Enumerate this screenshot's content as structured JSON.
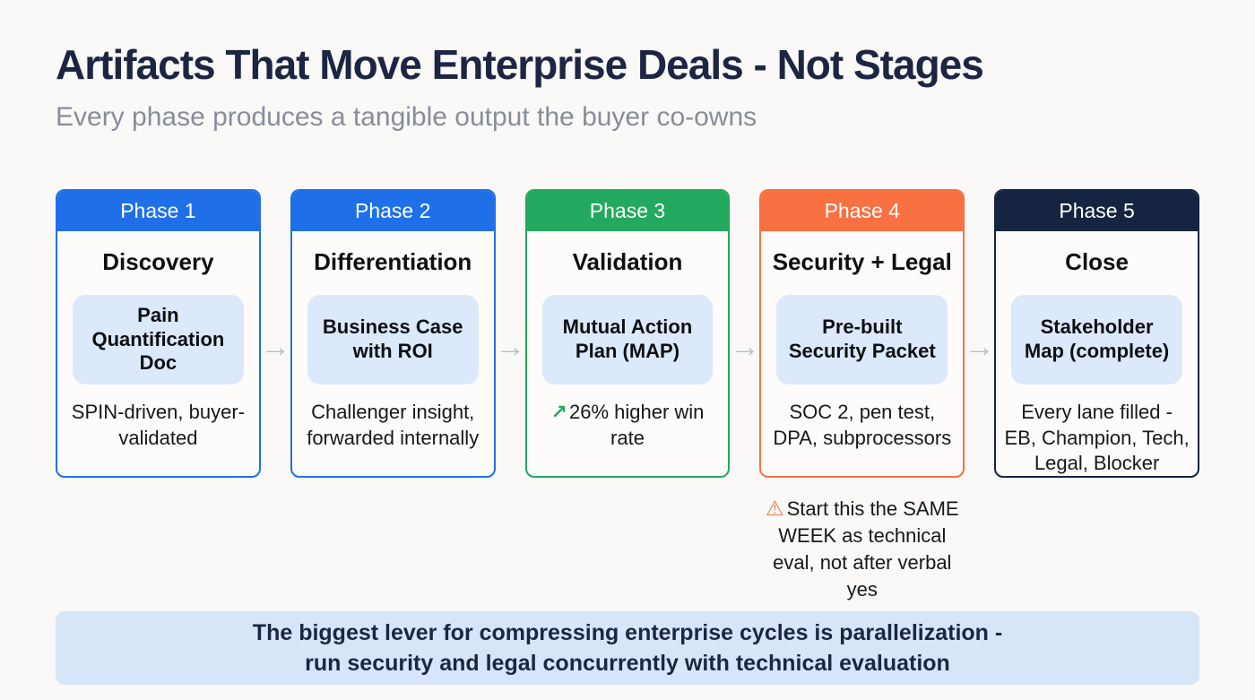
{
  "page": {
    "background": "#faf9f7",
    "title": "Artifacts That Move Enterprise Deals - Not Stages",
    "subtitle": "Every phase produces a tangible output the buyer co-owns"
  },
  "arrow_icon": "→",
  "arrow_color": "#b9c0c8",
  "artifact_box_bg": "#dce9fb",
  "phases": [
    {
      "label": "Phase 1",
      "color": "#1f70e8",
      "title": "Discovery",
      "artifact": "Pain Quantification Doc",
      "note": "SPIN-driven, buyer-validated"
    },
    {
      "label": "Phase 2",
      "color": "#1f70e8",
      "title": "Differentiation",
      "artifact": "Business Case with ROI",
      "note": "Challenger insight, forwarded internally"
    },
    {
      "label": "Phase 3",
      "color": "#23a85f",
      "title": "Validation",
      "artifact": "Mutual Action Plan (MAP)",
      "note": "26% higher win rate",
      "note_icon": "↗",
      "note_icon_color": "#23a85f"
    },
    {
      "label": "Phase 4",
      "color": "#f97042",
      "title": "Security + Legal",
      "artifact": "Pre-built Security Packet",
      "note": "SOC 2, pen test, DPA, subprocessors",
      "warning_icon": "⚠",
      "warning_icon_color": "#e8794b",
      "warning": "Start this the SAME WEEK as technical eval, not after verbal yes"
    },
    {
      "label": "Phase 5",
      "color": "#152440",
      "title": "Close",
      "artifact": "Stakeholder Map (complete)",
      "note": "Every lane filled - EB, Champion, Tech, Legal, Blocker"
    }
  ],
  "banner": {
    "bg": "#d7e5f8",
    "lines": [
      "The biggest lever for compressing enterprise cycles is parallelization -",
      "run security and legal concurrently with technical evaluation"
    ]
  }
}
